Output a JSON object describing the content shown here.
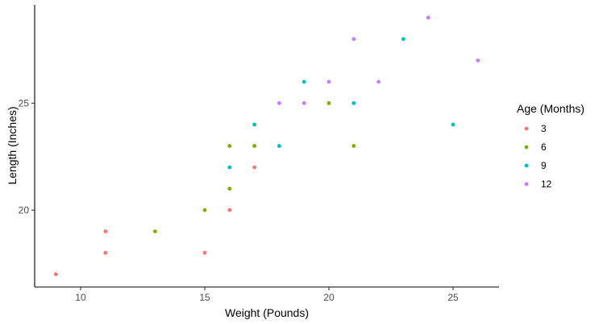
{
  "chart_data": {
    "type": "scatter",
    "title": "",
    "xlabel": "Weight (Pounds)",
    "ylabel": "Length (Inches)",
    "xlim": [
      8.15,
      26.85
    ],
    "ylim": [
      16.4,
      29.6
    ],
    "x_ticks": [
      10,
      15,
      20,
      25
    ],
    "y_ticks": [
      20,
      25
    ],
    "grid": false,
    "legend": {
      "title": "Age (Months)",
      "position": "right"
    },
    "series": [
      {
        "name": "3",
        "color": "#F8766D",
        "points": [
          [
            9,
            17
          ],
          [
            11,
            18
          ],
          [
            11,
            19
          ],
          [
            15,
            18
          ],
          [
            16,
            20
          ],
          [
            17,
            22
          ]
        ]
      },
      {
        "name": "6",
        "color": "#7CAE00",
        "points": [
          [
            13,
            19
          ],
          [
            15,
            20
          ],
          [
            16,
            21
          ],
          [
            16,
            23
          ],
          [
            17,
            23
          ],
          [
            20,
            25
          ],
          [
            21,
            23
          ]
        ]
      },
      {
        "name": "9",
        "color": "#00BFC4",
        "points": [
          [
            16,
            22
          ],
          [
            17,
            24
          ],
          [
            18,
            23
          ],
          [
            19,
            26
          ],
          [
            21,
            25
          ],
          [
            23,
            28
          ],
          [
            25,
            24
          ]
        ]
      },
      {
        "name": "12",
        "color": "#C77CFF",
        "points": [
          [
            18,
            25
          ],
          [
            19,
            25
          ],
          [
            20,
            26
          ],
          [
            21,
            28
          ],
          [
            22,
            26
          ],
          [
            24,
            29
          ],
          [
            26,
            27
          ]
        ]
      }
    ]
  }
}
